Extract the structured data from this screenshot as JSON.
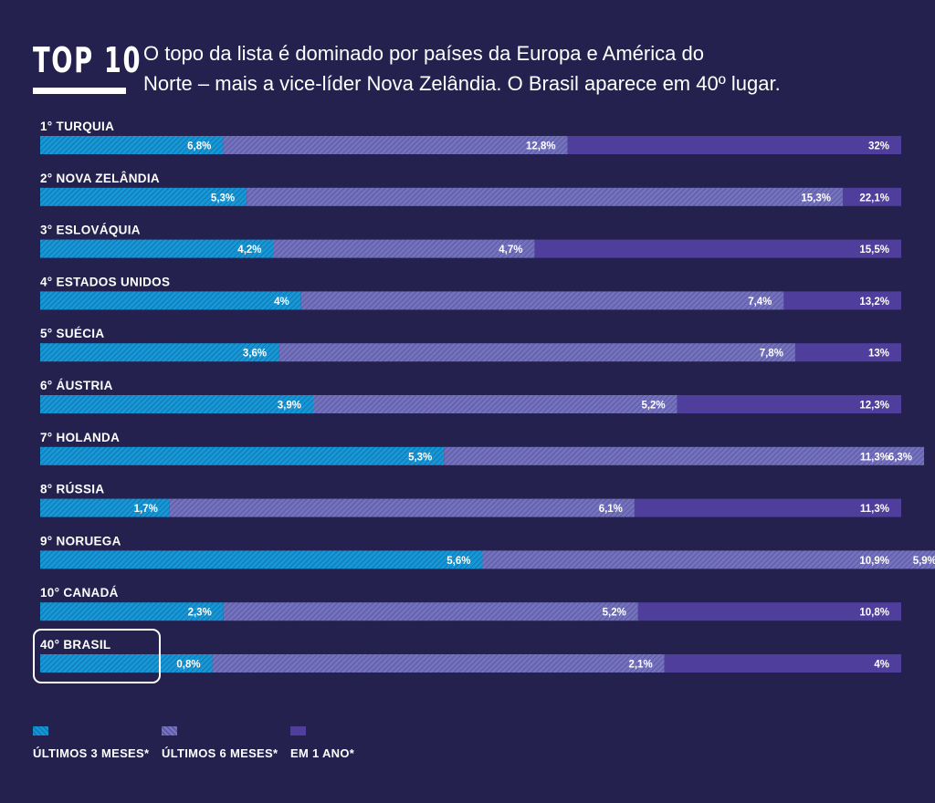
{
  "header": {
    "badge": "TOP 10",
    "subtitle_line1": "O topo da lista é dominado por países da Europa e América do",
    "subtitle_line2": "Norte – mais a vice-líder Nova Zelândia. O Brasil aparece em 40º lugar."
  },
  "chart_data": {
    "type": "bar",
    "orientation": "horizontal",
    "stacked": "overlapping",
    "categories": [
      "1°  TURQUIA",
      "2°  NOVA ZELÂNDIA",
      "3°  ESLOVÁQUIA",
      "4°  ESTADOS UNIDOS",
      "5°  SUÉCIA",
      "6°  ÁUSTRIA",
      "7°  HOLANDA",
      "8°  RÚSSIA",
      "9°  NORUEGA",
      "10°  CANADÁ",
      "40°  BRASIL"
    ],
    "series": [
      {
        "name": "ÚLTIMOS 3 MESES*",
        "values": [
          6.8,
          5.3,
          4.2,
          4,
          3.6,
          3.9,
          5.3,
          1.7,
          5.6,
          2.3,
          0.8
        ],
        "labels": [
          "6,8%",
          "5,3%",
          "4,2%",
          "4%",
          "3,6%",
          "3,9%",
          "5,3%",
          "1,7%",
          "5,6%",
          "2,3%",
          "0,8%"
        ]
      },
      {
        "name": "ÚLTIMOS 6 MESES*",
        "values": [
          12.8,
          15.3,
          4.7,
          7.4,
          7.8,
          5.2,
          6.3,
          6.1,
          5.9,
          5.2,
          2.1
        ],
        "labels": [
          "12,8%",
          "15,3%",
          "4,7%",
          "7,4%",
          "7,8%",
          "5,2%",
          "6,3%",
          "6,1%",
          "5,9%",
          "5,2%",
          "2,1%"
        ]
      },
      {
        "name": "EM 1 ANO*",
        "values": [
          32,
          22.1,
          15.5,
          13.2,
          13,
          12.3,
          11.3,
          11.3,
          10.9,
          10.8,
          4
        ],
        "labels": [
          "32%",
          "22,1%",
          "15,5%",
          "13,2%",
          "13%",
          "12,3%",
          "11,3%",
          "11,3%",
          "10,9%",
          "10,8%",
          "4%"
        ]
      }
    ],
    "highlight_row": 10,
    "colors": {
      "three_months": "#1797d6",
      "six_months": "#6c69b8",
      "one_year": "#4f3e9b",
      "background": "#24214f"
    }
  },
  "legend": {
    "three_months": "ÚLTIMOS 3 MESES*",
    "six_months": "ÚLTIMOS 6 MESES*",
    "one_year": "EM 1 ANO*"
  }
}
